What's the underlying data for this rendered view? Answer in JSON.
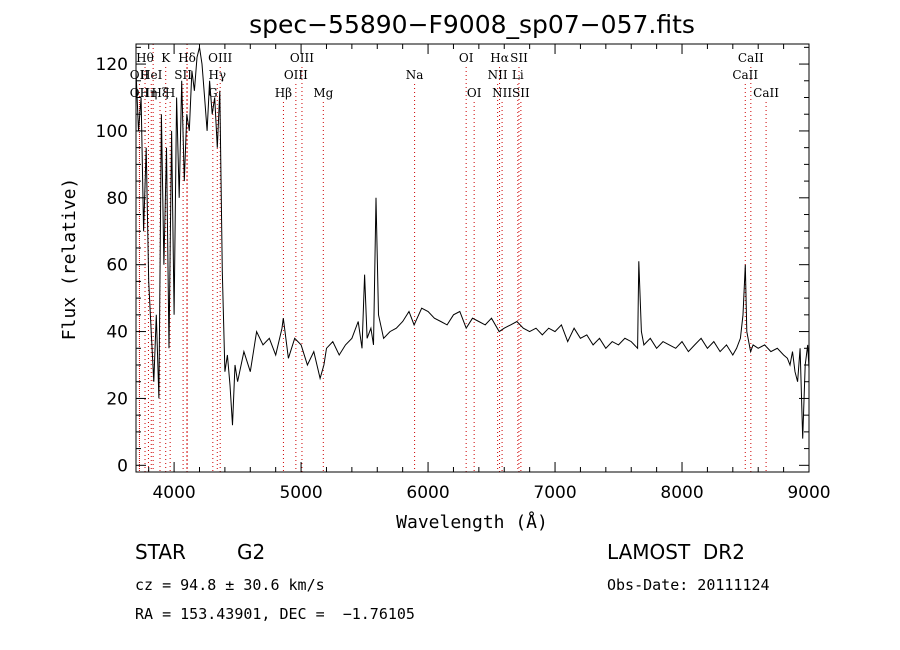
{
  "chart_data": {
    "type": "line",
    "title": "spec−55890−F9008_sp07−057.fits",
    "xlabel": "Wavelength (Å)",
    "ylabel": "Flux (relative)",
    "xlim": [
      3700,
      9000
    ],
    "ylim": [
      -2,
      126
    ],
    "grid": false,
    "x_ticks": [
      4000,
      5000,
      6000,
      7000,
      8000,
      9000
    ],
    "y_ticks": [
      0,
      20,
      40,
      60,
      80,
      100,
      120
    ],
    "series": [
      {
        "x": [
          3700,
          3720,
          3740,
          3760,
          3780,
          3800,
          3820,
          3840,
          3860,
          3880,
          3900,
          3920,
          3940,
          3960,
          3980,
          4000,
          4020,
          4040,
          4060,
          4080,
          4100,
          4120,
          4140,
          4160,
          4180,
          4200,
          4220,
          4240,
          4260,
          4280,
          4300,
          4320,
          4340,
          4360,
          4380,
          4400,
          4420,
          4440,
          4460,
          4480,
          4500,
          4550,
          4600,
          4650,
          4700,
          4750,
          4800,
          4850,
          4860,
          4900,
          4950,
          5000,
          5050,
          5100,
          5150,
          5180,
          5200,
          5250,
          5300,
          5350,
          5400,
          5450,
          5480,
          5500,
          5520,
          5550,
          5570,
          5590,
          5610,
          5650,
          5700,
          5750,
          5800,
          5850,
          5890,
          5950,
          6000,
          6050,
          6100,
          6150,
          6200,
          6250,
          6300,
          6350,
          6400,
          6450,
          6500,
          6560,
          6600,
          6650,
          6700,
          6750,
          6800,
          6850,
          6900,
          6950,
          7000,
          7050,
          7100,
          7150,
          7200,
          7250,
          7300,
          7350,
          7400,
          7450,
          7500,
          7550,
          7600,
          7650,
          7660,
          7680,
          7700,
          7750,
          7800,
          7850,
          7900,
          7950,
          8000,
          8050,
          8100,
          8150,
          8200,
          8250,
          8300,
          8350,
          8400,
          8430,
          8460,
          8480,
          8498,
          8510,
          8540,
          8560,
          8600,
          8650,
          8700,
          8750,
          8800,
          8830,
          8850,
          8870,
          8890,
          8910,
          8930,
          8950,
          8970,
          8990,
          9000
        ],
        "y": [
          118,
          100,
          110,
          70,
          95,
          55,
          40,
          25,
          45,
          20,
          105,
          60,
          95,
          35,
          100,
          45,
          110,
          80,
          115,
          85,
          105,
          100,
          118,
          112,
          122,
          125,
          120,
          110,
          100,
          115,
          105,
          110,
          95,
          112,
          58,
          28,
          33,
          24,
          12,
          30,
          25,
          34,
          28,
          40,
          36,
          38,
          33,
          41,
          44,
          32,
          38,
          36,
          30,
          34,
          26,
          30,
          35,
          37,
          33,
          36,
          38,
          43,
          35,
          57,
          38,
          41,
          36,
          80,
          45,
          38,
          40,
          41,
          43,
          46,
          42,
          47,
          46,
          44,
          43,
          42,
          45,
          46,
          41,
          44,
          43,
          42,
          44,
          40,
          41,
          42,
          43,
          41,
          40,
          41,
          39,
          41,
          40,
          42,
          37,
          41,
          38,
          39,
          36,
          38,
          35,
          37,
          36,
          38,
          37,
          35,
          61,
          40,
          36,
          38,
          35,
          37,
          36,
          35,
          37,
          34,
          36,
          38,
          35,
          37,
          34,
          36,
          33,
          35,
          38,
          45,
          60,
          40,
          34,
          36,
          35,
          36,
          34,
          35,
          33,
          32,
          30,
          34,
          28,
          25,
          35,
          8,
          30,
          36,
          29
        ]
      }
    ],
    "line_markers": [
      {
        "wl": 3727,
        "label": "OII",
        "row": 2
      },
      {
        "wl": 3727,
        "label": "OII",
        "row": 1
      },
      {
        "wl": 3771,
        "label": "Hθ",
        "row": 0
      },
      {
        "wl": 3798,
        "label": "Hη",
        "row": 2
      },
      {
        "wl": 3820,
        "label": "HeI",
        "row": 1
      },
      {
        "wl": 3835,
        "label": "",
        "row": -1
      },
      {
        "wl": 3889,
        "label": "Hξ",
        "row": 2
      },
      {
        "wl": 3934,
        "label": "K",
        "row": 0
      },
      {
        "wl": 3969,
        "label": "H",
        "row": 2
      },
      {
        "wl": 4071,
        "label": "SII",
        "row": 1
      },
      {
        "wl": 4102,
        "label": "Hδ",
        "row": 0
      },
      {
        "wl": 4102,
        "label": "",
        "row": -1
      },
      {
        "wl": 4305,
        "label": "G",
        "row": 2
      },
      {
        "wl": 4340,
        "label": "Hγ",
        "row": 1
      },
      {
        "wl": 4363,
        "label": "OIII",
        "row": 0
      },
      {
        "wl": 4861,
        "label": "Hβ",
        "row": 2
      },
      {
        "wl": 4959,
        "label": "OIII",
        "row": 1
      },
      {
        "wl": 5007,
        "label": "OIII",
        "row": 0
      },
      {
        "wl": 5175,
        "label": "Mg",
        "row": 2
      },
      {
        "wl": 5894,
        "label": "Na",
        "row": 1
      },
      {
        "wl": 6300,
        "label": "OI",
        "row": 0
      },
      {
        "wl": 6363,
        "label": "OI",
        "row": 2
      },
      {
        "wl": 6548,
        "label": "NII",
        "row": 1
      },
      {
        "wl": 6563,
        "label": "Hα",
        "row": 0
      },
      {
        "wl": 6583,
        "label": "NII",
        "row": 2
      },
      {
        "wl": 6707,
        "label": "Li",
        "row": 1
      },
      {
        "wl": 6716,
        "label": "SII",
        "row": 0
      },
      {
        "wl": 6731,
        "label": "SII",
        "row": 2
      },
      {
        "wl": 8498,
        "label": "CaII",
        "row": 1
      },
      {
        "wl": 8542,
        "label": "CaII",
        "row": 0
      },
      {
        "wl": 8662,
        "label": "CaII",
        "row": 2
      }
    ],
    "marker_color": "#cc0000",
    "line_color": "#000000"
  },
  "footer": {
    "object_class": "STAR",
    "subclass": "G2",
    "survey": "LAMOST  DR2",
    "velocity": "cz = 94.8 ± 30.6 km/s",
    "obs_date": "Obs-Date: 20111124",
    "coords": "RA = 153.43901, DEC =  −1.76105"
  }
}
